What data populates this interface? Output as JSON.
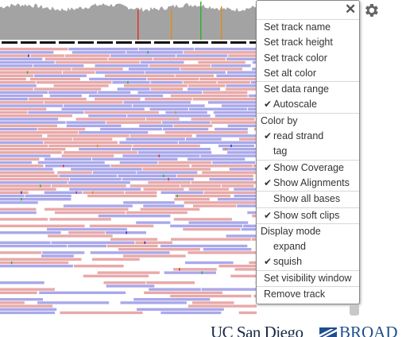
{
  "track_menu": {
    "items": {
      "set_track_name": "Set track name",
      "set_track_height": "Set track height",
      "set_track_color": "Set track color",
      "set_alt_color": "Set alt color",
      "set_data_range": "Set data range",
      "autoscale": "Autoscale",
      "color_by": "Color by",
      "read_strand": "read strand",
      "tag": "tag",
      "show_coverage": "Show Coverage",
      "show_alignments": "Show Alignments",
      "show_all_bases": "Show all bases",
      "show_soft_clips": "Show soft clips",
      "display_mode": "Display mode",
      "expand": "expand",
      "squish": "squish",
      "set_visibility_window": "Set visibility window",
      "remove_track": "Remove track"
    },
    "checked": {
      "autoscale": true,
      "read_strand": true,
      "show_coverage": true,
      "show_alignments": true,
      "show_soft_clips": true,
      "squish": true
    },
    "close_icon": "close-icon",
    "check_glyph": "✔"
  },
  "footer": {
    "ucsd_logo": "UC San Diego",
    "broad_logo": "BROAD"
  },
  "colors": {
    "coverage": "#a3a3a3",
    "forward_read": "#e8a9a9",
    "reverse_read": "#aaa8ea",
    "mismatch_red": "#e03030",
    "mismatch_orange": "#e08a20",
    "mismatch_green": "#30b030",
    "gear": "#666666"
  }
}
